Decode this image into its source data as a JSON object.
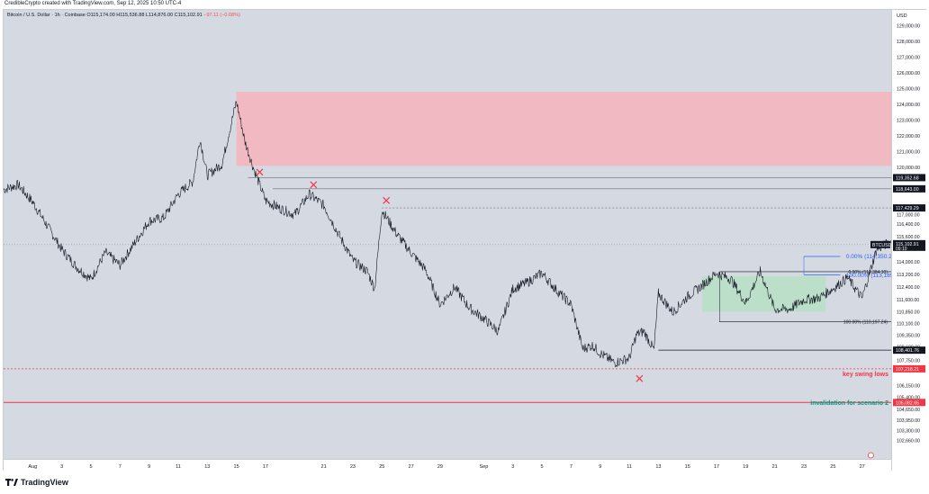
{
  "header": {
    "credit": "CredibleCrypto created with TradingView.com, Sep 12, 2025 10:50 UTC-4"
  },
  "legend": {
    "symbol": "Bitcoin / U.S. Dollar · 1h · Coinbase",
    "open": "O115,174.00",
    "high": "H115,536.88",
    "low": "L114,876.00",
    "close": "C115,102.91",
    "change": "−97.11 (−0.08%)"
  },
  "footer": {
    "brand": "TradingView"
  },
  "chart_data": {
    "type": "line",
    "title": "Bitcoin / U.S. Dollar · 1h · Coinbase",
    "currency": "USD",
    "ylim": [
      101500,
      130000
    ],
    "xlim_days": [
      -2,
      59
    ],
    "x_ticks": [
      {
        "label": "Aug",
        "day": 0
      },
      {
        "label": "3",
        "day": 2
      },
      {
        "label": "5",
        "day": 4
      },
      {
        "label": "7",
        "day": 6
      },
      {
        "label": "9",
        "day": 8
      },
      {
        "label": "11",
        "day": 10
      },
      {
        "label": "13",
        "day": 12
      },
      {
        "label": "15",
        "day": 14
      },
      {
        "label": "17",
        "day": 16
      },
      {
        "label": "21",
        "day": 20
      },
      {
        "label": "23",
        "day": 22
      },
      {
        "label": "25",
        "day": 24
      },
      {
        "label": "27",
        "day": 26
      },
      {
        "label": "29",
        "day": 28
      },
      {
        "label": "Sep",
        "day": 31
      },
      {
        "label": "3",
        "day": 33
      },
      {
        "label": "5",
        "day": 35
      },
      {
        "label": "7",
        "day": 37
      },
      {
        "label": "9",
        "day": 39
      },
      {
        "label": "11",
        "day": 41
      },
      {
        "label": "13",
        "day": 43
      },
      {
        "label": "15",
        "day": 45
      },
      {
        "label": "17",
        "day": 47
      },
      {
        "label": "19",
        "day": 49
      },
      {
        "label": "21",
        "day": 51
      },
      {
        "label": "23",
        "day": 53
      },
      {
        "label": "25",
        "day": 55
      },
      {
        "label": "27",
        "day": 57
      },
      {
        "label": "29",
        "day": 59
      },
      {
        "label": "Oct",
        "day": 61
      },
      {
        "label": "3",
        "day": 63
      }
    ],
    "y_ticks": [
      "129,000.00",
      "128,000.00",
      "127,000.00",
      "126,000.00",
      "125,000.00",
      "124,000.00",
      "123,000.00",
      "122,000.00",
      "121,000.00",
      "120,000.00",
      "117,000.00",
      "116,400.00",
      "115,600.00",
      "114,000.00",
      "113,200.00",
      "112,400.00",
      "111,600.00",
      "110,850.00",
      "110,100.00",
      "109,350.00",
      "108,600.00",
      "107,750.00",
      "106,150.00",
      "105,400.00",
      "104,650.00",
      "103,950.00",
      "103,300.00",
      "102,660.00"
    ],
    "series": [
      {
        "values": [
          [
            -2,
            118600
          ],
          [
            -1,
            118900
          ],
          [
            0,
            117800
          ],
          [
            1,
            116300
          ],
          [
            2,
            114800
          ],
          [
            3,
            113700
          ],
          [
            4,
            112900
          ],
          [
            5,
            114600
          ],
          [
            6,
            113800
          ],
          [
            7,
            115200
          ],
          [
            8,
            116600
          ],
          [
            9,
            116800
          ],
          [
            10,
            118300
          ],
          [
            11,
            119100
          ],
          [
            11.5,
            121800
          ],
          [
            12,
            119500
          ],
          [
            13,
            120200
          ],
          [
            14,
            124200
          ],
          [
            14.6,
            121600
          ],
          [
            15.2,
            119900
          ],
          [
            16,
            117900
          ],
          [
            17,
            117400
          ],
          [
            18,
            117000
          ],
          [
            19,
            118300
          ],
          [
            20,
            117600
          ],
          [
            21,
            115800
          ],
          [
            22,
            114100
          ],
          [
            23,
            113400
          ],
          [
            23.5,
            112300
          ],
          [
            24,
            117300
          ],
          [
            25,
            115800
          ],
          [
            26,
            114600
          ],
          [
            27,
            113500
          ],
          [
            28,
            111300
          ],
          [
            29,
            112400
          ],
          [
            30,
            111100
          ],
          [
            31,
            110400
          ],
          [
            32,
            109600
          ],
          [
            33,
            112300
          ],
          [
            34,
            112700
          ],
          [
            35,
            113300
          ],
          [
            36,
            112200
          ],
          [
            37,
            111300
          ],
          [
            37.8,
            108500
          ],
          [
            38.5,
            108700
          ],
          [
            39,
            108200
          ],
          [
            40,
            107600
          ],
          [
            41,
            107900
          ],
          [
            41.5,
            109400
          ],
          [
            42,
            109600
          ],
          [
            42.7,
            108400
          ],
          [
            43,
            112000
          ],
          [
            44,
            110800
          ],
          [
            45,
            111800
          ],
          [
            46,
            112500
          ],
          [
            47,
            113300
          ],
          [
            48,
            112900
          ],
          [
            49,
            111400
          ],
          [
            50,
            113400
          ],
          [
            51,
            111000
          ],
          [
            52,
            111000
          ],
          [
            53,
            111600
          ],
          [
            54,
            111700
          ],
          [
            55,
            112300
          ],
          [
            56,
            113000
          ],
          [
            57,
            111700
          ],
          [
            58,
            114800
          ],
          [
            59,
            115300
          ],
          [
            60,
            115800
          ],
          [
            60.8,
            116600
          ],
          [
            61.5,
            115200
          ]
        ]
      }
    ],
    "levels": [
      {
        "label": "119,352.68",
        "price": 119352.68
      },
      {
        "label": "118,643.00",
        "price": 118643
      },
      {
        "label": "117,429.29",
        "price": 117429.29
      },
      {
        "label": "108,401.76",
        "price": 108401.76
      },
      {
        "label": "107,218.21",
        "price": 107218.21
      },
      {
        "label": "105,082.65",
        "price": 105082.65
      }
    ],
    "fib_upper": {
      "labels": [
        "0.00% (114,350.21)",
        "100.00% (113,189.07)"
      ]
    },
    "fib_lower": {
      "labels": [
        "0.00% (113,384.10)",
        "100.00% (110,197.24)"
      ]
    },
    "current_price": {
      "symbol": "BTCUSD",
      "price": "115,102.91",
      "countdown": "09:10"
    },
    "annotations": [
      {
        "text": "key swing lows",
        "color": "#f23645"
      },
      {
        "text": "invalidation for scenario 2",
        "color": "#089981"
      }
    ],
    "zones": [
      {
        "kind": "supply",
        "from": 120100,
        "to": 124800,
        "color": "#f4b6bf"
      },
      {
        "kind": "demand",
        "from": 110850,
        "to": 113100,
        "color": "#b9dfc6"
      }
    ]
  }
}
